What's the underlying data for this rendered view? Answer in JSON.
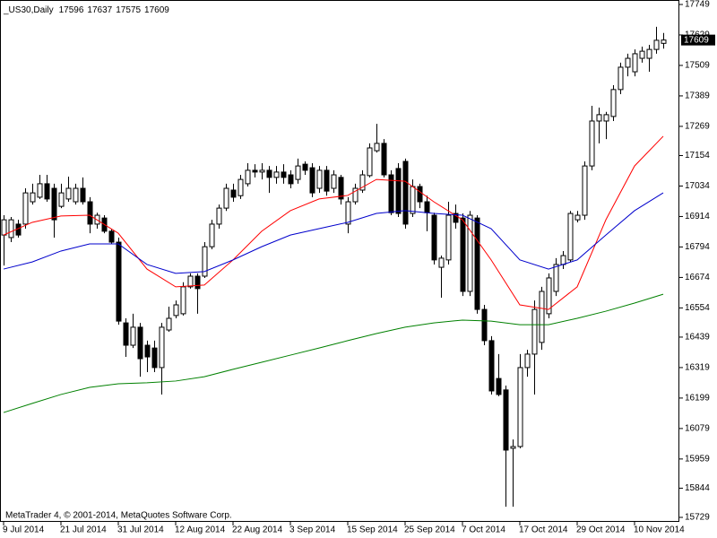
{
  "chart_data": {
    "type": "candlestick",
    "title": "_US30,Daily",
    "footer": "MetaTrader 4, © 2001-2014, MetaQuotes Software Corp.",
    "categories": [
      "9 Jul 2014",
      null,
      null,
      null,
      null,
      null,
      null,
      null,
      "21 Jul 2014",
      null,
      null,
      null,
      null,
      null,
      null,
      null,
      "31 Jul 2014",
      null,
      null,
      null,
      null,
      null,
      null,
      null,
      "12 Aug 2014",
      null,
      null,
      null,
      null,
      null,
      null,
      null,
      "22 Aug 2014",
      null,
      null,
      null,
      null,
      null,
      null,
      null,
      "3 Sep 2014",
      null,
      null,
      null,
      null,
      null,
      null,
      null,
      "15 Sep 2014",
      null,
      null,
      null,
      null,
      null,
      null,
      null,
      "25 Sep 2014",
      null,
      null,
      null,
      null,
      null,
      null,
      null,
      "7 Oct 2014",
      null,
      null,
      null,
      null,
      null,
      null,
      null,
      "17 Oct 2014",
      null,
      null,
      null,
      null,
      null,
      null,
      null,
      "29 Oct 2014",
      null,
      null,
      null,
      null,
      null,
      null,
      null,
      "10 Nov 2014",
      null,
      null,
      null,
      null
    ],
    "open": [
      16841,
      16831,
      16884,
      16884,
      16972,
      16990,
      17043,
      17025,
      16954,
      16983,
      16972,
      17025,
      16972,
      16884,
      16908,
      16856,
      16813,
      16495,
      16407,
      16478,
      16407,
      16396,
      16319,
      16467,
      16524,
      16531,
      16637,
      16679,
      16679,
      16795,
      16884,
      16947,
      17018,
      16996,
      17043,
      17096,
      17089,
      17096,
      17068,
      17089,
      17078,
      17060,
      17120,
      17106,
      17025,
      17096,
      17025,
      17068,
      16884,
      16972,
      17018,
      17075,
      17173,
      17202,
      17078,
      17103,
      17131,
      16926,
      17032,
      16972,
      16919,
      16714,
      16743,
      16926,
      16908,
      16619,
      16908,
      16548,
      16425,
      16276,
      16231,
      16001,
      16008,
      16319,
      16372,
      16418,
      16531,
      16619,
      16725,
      16743,
      16901,
      16919,
      17113,
      17290,
      17290,
      17308,
      17414,
      17502,
      17484,
      17537,
      17537,
      17572,
      17596
    ],
    "high": [
      16919,
      16912,
      16901,
      17025,
      17043,
      17078,
      17078,
      17043,
      17043,
      17071,
      17043,
      17068,
      16990,
      16929,
      16919,
      16866,
      16831,
      16513,
      16531,
      16495,
      16425,
      16425,
      16495,
      16559,
      16583,
      16655,
      16690,
      16690,
      16813,
      16901,
      16961,
      17043,
      17043,
      17078,
      17124,
      17120,
      17124,
      17113,
      17113,
      17120,
      17096,
      17142,
      17131,
      17124,
      17113,
      17113,
      17096,
      17078,
      16990,
      17043,
      17096,
      17202,
      17279,
      17219,
      17096,
      17124,
      17142,
      17060,
      17043,
      16996,
      16929,
      16760,
      16972,
      16961,
      16926,
      16936,
      16919,
      16566,
      16443,
      16372,
      16248,
      16036,
      16372,
      16389,
      16583,
      16637,
      16690,
      16750,
      16778,
      16936,
      16936,
      17131,
      17350,
      17343,
      17326,
      17431,
      17520,
      17555,
      17572,
      17583,
      17590,
      17661,
      17637
    ],
    "low": [
      16721,
      16813,
      16831,
      16866,
      16961,
      16983,
      16972,
      16831,
      16947,
      16972,
      16961,
      16961,
      16848,
      16866,
      16848,
      16806,
      16488,
      16361,
      16396,
      16283,
      16301,
      16301,
      16213,
      16460,
      16513,
      16524,
      16630,
      16531,
      16672,
      16785,
      16866,
      16936,
      16972,
      16983,
      17032,
      17068,
      17060,
      17007,
      17043,
      17043,
      17025,
      17043,
      17078,
      16990,
      17007,
      16996,
      17007,
      16961,
      16848,
      16961,
      17007,
      17068,
      17166,
      17068,
      16919,
      16912,
      16866,
      16912,
      16947,
      16856,
      16725,
      16594,
      16725,
      16866,
      16601,
      16601,
      16531,
      16407,
      16213,
      16206,
      15771,
      15771,
      16001,
      16283,
      16213,
      16389,
      16513,
      16601,
      16707,
      16735,
      16891,
      16901,
      17096,
      17202,
      17219,
      17290,
      17396,
      17466,
      17466,
      17520,
      17484,
      17555,
      17575
    ],
    "close": [
      16901,
      16901,
      16841,
      17007,
      17007,
      17043,
      16983,
      16901,
      17007,
      17025,
      17025,
      16972,
      16884,
      16919,
      16856,
      16813,
      16502,
      16407,
      16478,
      16354,
      16361,
      16319,
      16478,
      16513,
      16566,
      16637,
      16679,
      16630,
      16795,
      16884,
      16947,
      17025,
      16990,
      17060,
      17096,
      17089,
      17096,
      17068,
      17089,
      17068,
      17043,
      17113,
      17096,
      17007,
      17096,
      17014,
      17078,
      16983,
      16972,
      17025,
      17078,
      17184,
      17202,
      17078,
      16929,
      16926,
      16884,
      17032,
      16972,
      16929,
      16743,
      16750,
      16919,
      16891,
      16619,
      16919,
      16548,
      16425,
      16227,
      16213,
      15994,
      16008,
      16319,
      16372,
      16548,
      16619,
      16672,
      16725,
      16760,
      16926,
      16919,
      17113,
      17290,
      17315,
      17315,
      17414,
      17502,
      17537,
      17555,
      17565,
      17572,
      17608,
      17609
    ],
    "up_color": "#ffffff",
    "down_color": "#000000",
    "lines": [
      {
        "color": "#ff0000",
        "x": [
          0,
          4,
          8,
          12,
          16,
          20,
          24,
          28,
          32,
          36,
          40,
          44,
          48,
          52,
          56,
          60,
          64,
          68,
          72,
          76,
          80,
          84,
          88,
          92
        ],
        "values": [
          16841,
          16891,
          16916,
          16919,
          16848,
          16707,
          16637,
          16644,
          16743,
          16856,
          16937,
          16983,
          16997,
          17060,
          17053,
          16972,
          16901,
          16743,
          16566,
          16548,
          16637,
          16901,
          17113,
          17230
        ]
      },
      {
        "color": "#0000cc",
        "x": [
          0,
          4,
          8,
          12,
          16,
          20,
          24,
          28,
          32,
          36,
          40,
          44,
          48,
          52,
          56,
          60,
          64,
          68,
          72,
          76,
          80,
          84,
          88,
          92
        ],
        "values": [
          16707,
          16735,
          16778,
          16806,
          16806,
          16725,
          16690,
          16697,
          16743,
          16795,
          16841,
          16866,
          16891,
          16926,
          16937,
          16926,
          16919,
          16866,
          16743,
          16707,
          16743,
          16841,
          16937,
          17007
        ]
      },
      {
        "color": "#008000",
        "x": [
          0,
          4,
          8,
          12,
          16,
          20,
          24,
          28,
          32,
          36,
          40,
          44,
          48,
          52,
          56,
          60,
          64,
          68,
          72,
          76,
          80,
          84,
          88,
          92
        ],
        "values": [
          16142,
          16178,
          16213,
          16241,
          16255,
          16259,
          16266,
          16283,
          16312,
          16340,
          16368,
          16396,
          16425,
          16453,
          16478,
          16495,
          16506,
          16502,
          16488,
          16488,
          16513,
          16541,
          16573,
          16608
        ]
      }
    ],
    "ylim": [
      15729,
      17749
    ],
    "yticks": [
      15729,
      15844,
      15959,
      16079,
      16199,
      16319,
      16439,
      16554,
      16674,
      16794,
      16914,
      17034,
      17154,
      17269,
      17389,
      17509,
      17629,
      17749
    ]
  }
}
